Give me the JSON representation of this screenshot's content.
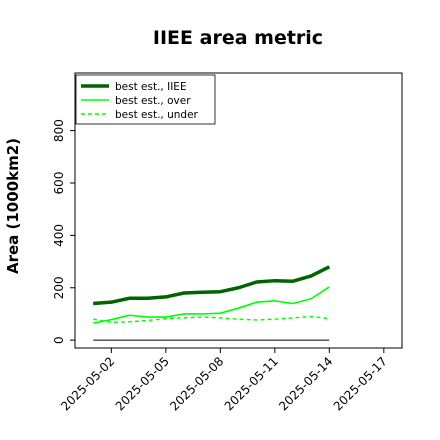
{
  "chart_data": {
    "type": "line",
    "title": "IIEE area metric",
    "xlabel": "",
    "ylabel": "Area (1000km2)",
    "x": [
      "2025-05-01",
      "2025-05-02",
      "2025-05-03",
      "2025-05-04",
      "2025-05-05",
      "2025-05-06",
      "2025-05-07",
      "2025-05-08",
      "2025-05-09",
      "2025-05-10",
      "2025-05-11",
      "2025-05-12",
      "2025-05-13",
      "2025-05-14"
    ],
    "xlim": [
      "2025-04-30",
      "2025-05-18"
    ],
    "xticks": [
      "2025-05-02",
      "2025-05-05",
      "2025-05-08",
      "2025-05-11",
      "2025-05-14",
      "2025-05-17"
    ],
    "ylim": [
      -30,
      1020
    ],
    "yticks": [
      0,
      200,
      400,
      600,
      800
    ],
    "grid": false,
    "legend_position": "top-left",
    "colors": {
      "iiee": "#006400",
      "over": "#00ff00",
      "under": "#00ff00",
      "baseline": "#000000",
      "frame": "#000000"
    },
    "series": [
      {
        "name": "best est., IIEE",
        "style": "solid-thick",
        "color": "#006400",
        "values": [
          140,
          145,
          160,
          160,
          165,
          180,
          183,
          185,
          200,
          222,
          227,
          225,
          245,
          280
        ]
      },
      {
        "name": "best est., over",
        "style": "solid",
        "color": "#00ff00",
        "values": [
          65,
          78,
          95,
          88,
          88,
          100,
          100,
          103,
          122,
          145,
          150,
          140,
          158,
          203
        ]
      },
      {
        "name": "best est., under",
        "style": "dashed",
        "color": "#00ff00",
        "values": [
          80,
          68,
          70,
          75,
          82,
          85,
          88,
          85,
          80,
          77,
          80,
          85,
          90,
          82
        ]
      },
      {
        "style": "solid-thin",
        "color": "#000000",
        "values": [
          0,
          0,
          0,
          0,
          0,
          0,
          0,
          0,
          0,
          0,
          0,
          0,
          0,
          0
        ]
      }
    ]
  }
}
